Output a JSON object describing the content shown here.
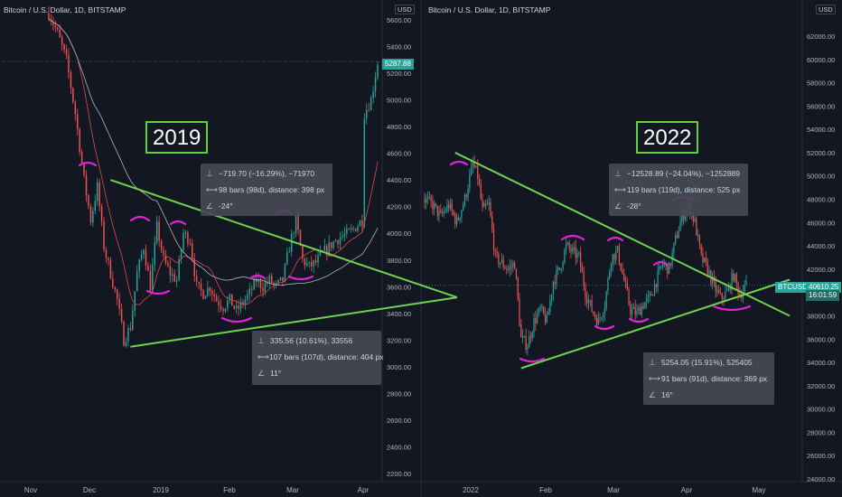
{
  "charts": [
    {
      "title": "Bitcoin / U.S. Dollar, 1D, BITSTAMP",
      "year_label": "2019",
      "currency": "USD",
      "yticks": [
        "5600.00",
        "5400.00",
        "5200.00",
        "5000.00",
        "4800.00",
        "4600.00",
        "4400.00",
        "4200.00",
        "4000.00",
        "3800.00",
        "3600.00",
        "3400.00",
        "3200.00",
        "3000.00",
        "2800.00",
        "2600.00",
        "2400.00",
        "2200.00"
      ],
      "xticks": [
        "Nov",
        "Dec",
        "2019",
        "Feb",
        "Mar",
        "Apr"
      ],
      "price_label": "5287.88",
      "measure_top": {
        "change": "−719.70 (−16.29%), −71970",
        "bars": "98 bars (98d), distance: 398 px",
        "angle": "-24°"
      },
      "measure_bottom": {
        "change": "335.56 (10.61%), 33556",
        "bars": "107 bars (107d), distance: 404 px",
        "angle": "11°"
      }
    },
    {
      "title": "Bitcoin / U.S. Dollar, 1D, BITSTAMP",
      "year_label": "2022",
      "currency": "USD",
      "yticks": [
        "62000.00",
        "60000.00",
        "58000.00",
        "56000.00",
        "54000.00",
        "52000.00",
        "50000.00",
        "48000.00",
        "46000.00",
        "44000.00",
        "42000.00",
        "40000.00",
        "38000.00",
        "36000.00",
        "34000.00",
        "32000.00",
        "30000.00",
        "28000.00",
        "26000.00",
        "24000.00"
      ],
      "xticks": [
        "2022",
        "Feb",
        "Mar",
        "Apr",
        "May"
      ],
      "symbol_label": "BTCUSD",
      "price_label": "40610.25",
      "countdown": "16:01:59",
      "measure_top": {
        "change": "−12528.89 (−24.04%), −1252889",
        "bars": "119 bars (119d), distance: 525 px",
        "angle": "-28°"
      },
      "measure_bottom": {
        "change": "5254.05 (15.91%), 525405",
        "bars": "91 bars (91d), distance: 369 px",
        "angle": "16°"
      }
    }
  ],
  "chart_data": [
    {
      "type": "candlestick",
      "title": "Bitcoin / U.S. Dollar, 1D, BITSTAMP",
      "ylim": [
        2100,
        5700
      ],
      "close_path": [
        [
          0,
          5650
        ],
        [
          4,
          5500
        ],
        [
          8,
          5300
        ],
        [
          12,
          4900
        ],
        [
          16,
          4400
        ],
        [
          19,
          4100
        ],
        [
          22,
          4350
        ],
        [
          25,
          3900
        ],
        [
          28,
          3700
        ],
        [
          31,
          3500
        ],
        [
          34,
          3200
        ],
        [
          37,
          3300
        ],
        [
          40,
          3700
        ],
        [
          43,
          3900
        ],
        [
          46,
          3600
        ],
        [
          49,
          4050
        ],
        [
          52,
          3800
        ],
        [
          55,
          3700
        ],
        [
          58,
          3650
        ],
        [
          61,
          4000
        ],
        [
          64,
          3950
        ],
        [
          67,
          3600
        ],
        [
          70,
          3550
        ],
        [
          73,
          3600
        ],
        [
          76,
          3500
        ],
        [
          79,
          3450
        ],
        [
          82,
          3500
        ],
        [
          85,
          3420
        ],
        [
          88,
          3480
        ],
        [
          91,
          3550
        ],
        [
          94,
          3650
        ],
        [
          97,
          3600
        ],
        [
          100,
          3650
        ],
        [
          103,
          3600
        ],
        [
          106,
          3650
        ],
        [
          109,
          3900
        ],
        [
          112,
          4100
        ],
        [
          115,
          3800
        ],
        [
          118,
          3750
        ],
        [
          121,
          3780
        ],
        [
          124,
          3850
        ],
        [
          127,
          3900
        ],
        [
          130,
          3950
        ],
        [
          133,
          3980
        ],
        [
          136,
          4000
        ],
        [
          139,
          4050
        ],
        [
          142,
          4100
        ],
        [
          143,
          4900
        ],
        [
          146,
          5000
        ],
        [
          149,
          5280
        ]
      ],
      "trendlines": {
        "descending": [
          [
            28,
            4400
          ],
          [
            185,
            3520
          ]
        ],
        "ascending": [
          [
            37,
            3150
          ],
          [
            185,
            3520
          ]
        ]
      },
      "price_line": 5287.88
    },
    {
      "type": "candlestick",
      "title": "Bitcoin / U.S. Dollar, 1D, BITSTAMP",
      "ylim": [
        23500,
        63500
      ],
      "close_path": [
        [
          0,
          48000
        ],
        [
          5,
          47500
        ],
        [
          10,
          46500
        ],
        [
          15,
          47500
        ],
        [
          20,
          46000
        ],
        [
          25,
          48000
        ],
        [
          30,
          51000
        ],
        [
          33,
          50000
        ],
        [
          36,
          47000
        ],
        [
          40,
          47500
        ],
        [
          44,
          43000
        ],
        [
          48,
          42500
        ],
        [
          52,
          42000
        ],
        [
          56,
          42500
        ],
        [
          60,
          36000
        ],
        [
          64,
          35500
        ],
        [
          68,
          37500
        ],
        [
          72,
          38500
        ],
        [
          76,
          37500
        ],
        [
          80,
          41000
        ],
        [
          84,
          42000
        ],
        [
          88,
          44000
        ],
        [
          92,
          43500
        ],
        [
          96,
          43000
        ],
        [
          100,
          40000
        ],
        [
          104,
          38500
        ],
        [
          108,
          37500
        ],
        [
          112,
          39000
        ],
        [
          116,
          43000
        ],
        [
          120,
          43500
        ],
        [
          124,
          41000
        ],
        [
          128,
          38500
        ],
        [
          132,
          38200
        ],
        [
          136,
          39000
        ],
        [
          140,
          39500
        ],
        [
          144,
          41000
        ],
        [
          148,
          42500
        ],
        [
          152,
          42000
        ],
        [
          156,
          44500
        ],
        [
          160,
          46500
        ],
        [
          164,
          47500
        ],
        [
          168,
          46000
        ],
        [
          172,
          43000
        ],
        [
          176,
          42000
        ],
        [
          180,
          40500
        ],
        [
          184,
          39500
        ],
        [
          188,
          40000
        ],
        [
          192,
          41500
        ],
        [
          196,
          39800
        ],
        [
          200,
          40610
        ]
      ],
      "trendlines": {
        "descending": [
          [
            19,
            52000
          ],
          [
            227,
            38000
          ]
        ],
        "ascending": [
          [
            60,
            33500
          ],
          [
            227,
            41100
          ]
        ]
      },
      "price_line": 40610.25
    }
  ]
}
